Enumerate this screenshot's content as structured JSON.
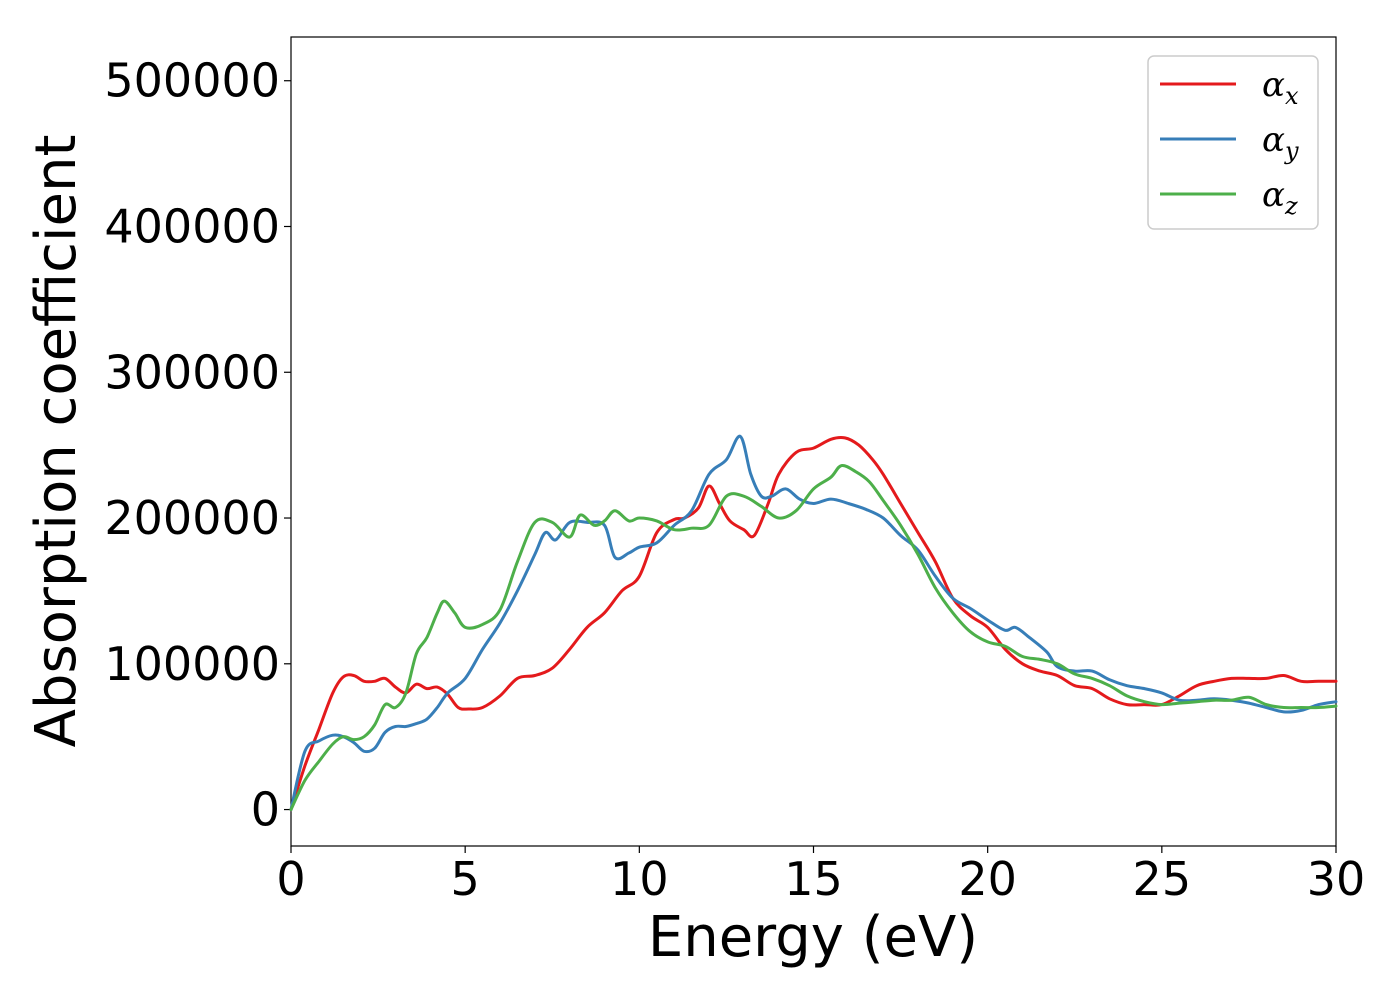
{
  "chart_data": {
    "type": "line",
    "title": "",
    "xlabel": "Energy (eV)",
    "ylabel": "Absorption coefficient",
    "xlim": [
      0,
      30
    ],
    "ylim": [
      -25000,
      530000
    ],
    "xticks": [
      0,
      5,
      10,
      15,
      20,
      25,
      30
    ],
    "xtick_labels": [
      "0",
      "5",
      "10",
      "15",
      "20",
      "25",
      "30"
    ],
    "yticks": [
      0,
      100000,
      200000,
      300000,
      400000,
      500000
    ],
    "ytick_labels": [
      "0",
      "100000",
      "200000",
      "300000",
      "400000",
      "500000"
    ],
    "grid": false,
    "legend_position": "top-right",
    "series": [
      {
        "name": "αx",
        "symbol": "α",
        "subscript": "x",
        "color": "#e41a1c",
        "x": [
          0,
          0.4,
          0.8,
          1.2,
          1.5,
          1.8,
          2.1,
          2.4,
          2.7,
          3.0,
          3.3,
          3.6,
          3.9,
          4.2,
          4.5,
          4.8,
          5.1,
          5.5,
          6.0,
          6.5,
          7.0,
          7.5,
          8.0,
          8.5,
          9.0,
          9.5,
          10.0,
          10.5,
          11.0,
          11.3,
          11.7,
          12.0,
          12.3,
          12.6,
          13.0,
          13.3,
          13.7,
          14.0,
          14.5,
          15.0,
          15.5,
          15.9,
          16.3,
          16.7,
          17.0,
          17.5,
          18.0,
          18.5,
          19.0,
          19.5,
          20.0,
          20.5,
          21.0,
          21.5,
          22.0,
          22.5,
          23.0,
          23.5,
          24.0,
          24.5,
          25.0,
          25.5,
          26.0,
          26.5,
          27.0,
          27.5,
          28.0,
          28.5,
          29.0,
          29.5,
          30.0
        ],
        "values": [
          0,
          30000,
          55000,
          80000,
          91000,
          92000,
          88000,
          88000,
          90000,
          84000,
          80000,
          86000,
          83000,
          84000,
          79000,
          70000,
          69000,
          70000,
          78000,
          90000,
          92000,
          97000,
          110000,
          125000,
          135000,
          150000,
          160000,
          190000,
          199000,
          200000,
          207000,
          222000,
          210000,
          198000,
          192000,
          188000,
          210000,
          230000,
          245000,
          248000,
          254000,
          255000,
          250000,
          240000,
          230000,
          210000,
          190000,
          170000,
          145000,
          133000,
          125000,
          110000,
          100000,
          95000,
          92000,
          85000,
          83000,
          76000,
          72000,
          72000,
          72000,
          78000,
          85000,
          88000,
          90000,
          90000,
          90000,
          92000,
          88000,
          88000,
          88000
        ]
      },
      {
        "name": "αy",
        "symbol": "α",
        "subscript": "y",
        "color": "#377eb8",
        "x": [
          0,
          0.4,
          0.8,
          1.2,
          1.5,
          1.8,
          2.1,
          2.4,
          2.7,
          3.0,
          3.3,
          3.6,
          3.9,
          4.2,
          4.5,
          5.0,
          5.5,
          6.0,
          6.5,
          7.0,
          7.3,
          7.6,
          8.0,
          8.5,
          9.0,
          9.3,
          9.7,
          10.0,
          10.5,
          11.0,
          11.5,
          12.0,
          12.5,
          12.9,
          13.2,
          13.5,
          13.8,
          14.2,
          14.6,
          15.0,
          15.5,
          16.0,
          16.5,
          17.0,
          17.5,
          18.0,
          18.5,
          19.0,
          19.5,
          20.0,
          20.5,
          20.8,
          21.2,
          21.7,
          22.0,
          22.5,
          23.0,
          23.5,
          24.0,
          24.5,
          25.0,
          25.5,
          26.0,
          26.5,
          27.0,
          27.5,
          28.0,
          28.5,
          29.0,
          29.5,
          30.0
        ],
        "values": [
          0,
          40000,
          47000,
          51000,
          50000,
          46000,
          40000,
          42000,
          53000,
          57000,
          57000,
          59000,
          62000,
          70000,
          80000,
          90000,
          110000,
          128000,
          150000,
          175000,
          190000,
          185000,
          197000,
          197000,
          195000,
          173000,
          176000,
          180000,
          183000,
          195000,
          205000,
          230000,
          240000,
          256000,
          230000,
          215000,
          215000,
          220000,
          213000,
          210000,
          213000,
          210000,
          206000,
          200000,
          188000,
          178000,
          160000,
          145000,
          138000,
          130000,
          123000,
          125000,
          118000,
          108000,
          98000,
          95000,
          95000,
          89000,
          85000,
          83000,
          80000,
          75000,
          75000,
          76000,
          75000,
          73000,
          70000,
          67000,
          68000,
          72000,
          74000
        ]
      },
      {
        "name": "αz",
        "symbol": "α",
        "subscript": "z",
        "color": "#4daf4a",
        "x": [
          0,
          0.4,
          0.8,
          1.2,
          1.5,
          1.8,
          2.1,
          2.4,
          2.7,
          3.0,
          3.3,
          3.6,
          3.9,
          4.2,
          4.4,
          4.7,
          5.0,
          5.5,
          6.0,
          6.5,
          7.0,
          7.5,
          8.0,
          8.3,
          8.7,
          9.0,
          9.3,
          9.7,
          10.0,
          10.5,
          11.0,
          11.5,
          12.0,
          12.5,
          13.0,
          13.5,
          14.0,
          14.5,
          15.0,
          15.5,
          15.8,
          16.2,
          16.6,
          17.0,
          17.5,
          18.0,
          18.5,
          19.0,
          19.5,
          20.0,
          20.5,
          21.0,
          21.5,
          22.0,
          22.5,
          23.0,
          23.5,
          24.0,
          24.5,
          25.0,
          25.5,
          26.0,
          26.5,
          27.0,
          27.5,
          28.0,
          28.5,
          29.0,
          29.5,
          30.0
        ],
        "values": [
          0,
          20000,
          33000,
          45000,
          50000,
          48000,
          50000,
          58000,
          72000,
          70000,
          80000,
          107000,
          118000,
          135000,
          143000,
          135000,
          125000,
          127000,
          137000,
          170000,
          197000,
          197000,
          187000,
          202000,
          195000,
          198000,
          205000,
          198000,
          200000,
          198000,
          192000,
          193000,
          195000,
          215000,
          215000,
          208000,
          200000,
          205000,
          220000,
          228000,
          236000,
          232000,
          225000,
          212000,
          195000,
          175000,
          152000,
          135000,
          122000,
          115000,
          112000,
          105000,
          103000,
          100000,
          93000,
          90000,
          85000,
          78000,
          74000,
          72000,
          73000,
          74000,
          75000,
          75000,
          77000,
          72000,
          70000,
          70000,
          70000,
          71000
        ]
      }
    ]
  }
}
